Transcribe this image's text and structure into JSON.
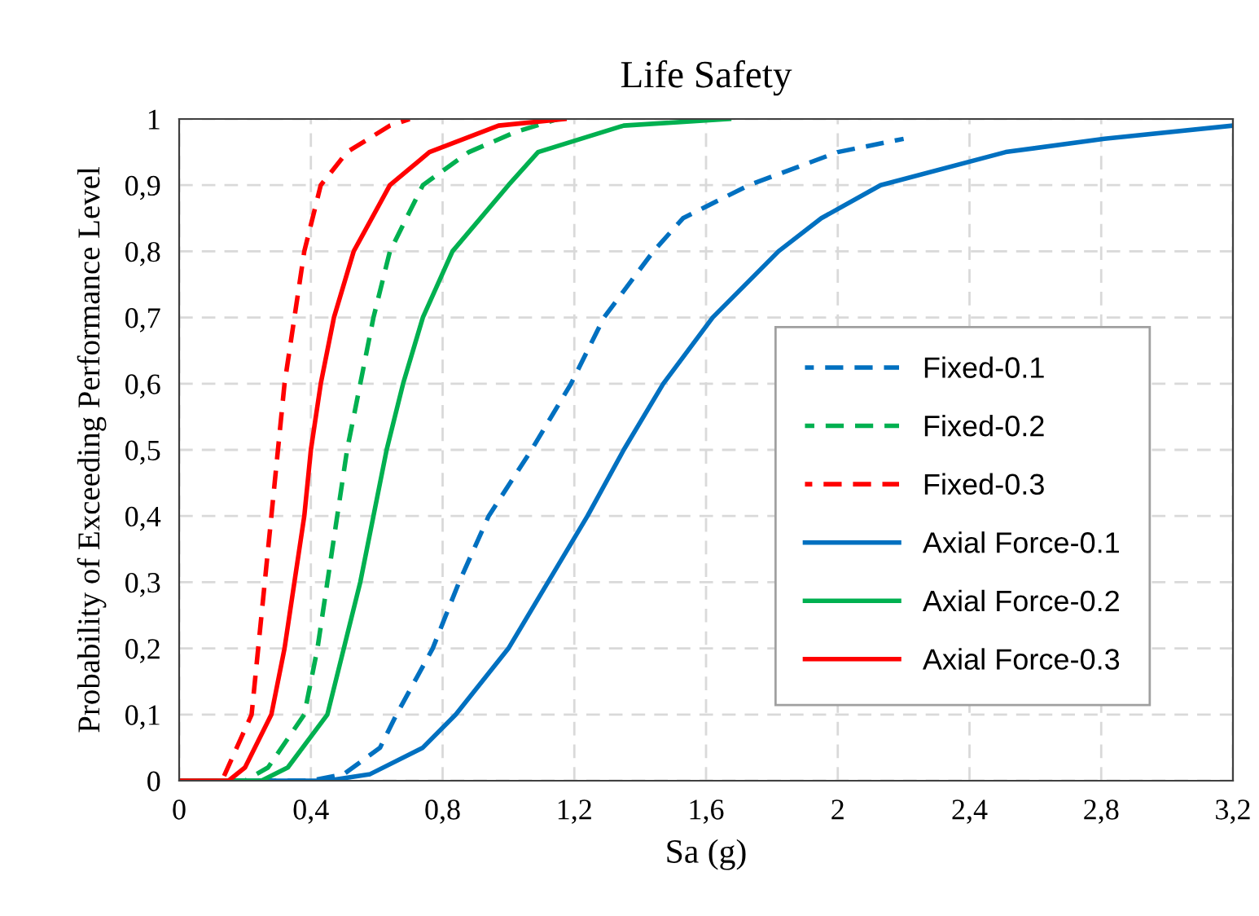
{
  "chart_data": {
    "type": "line",
    "title": "Life Safety",
    "xlabel": "Sa (g)",
    "ylabel": "Probability of Exceeding Performance Level",
    "xlim": [
      0,
      3.2
    ],
    "ylim": [
      0,
      1
    ],
    "xticks": [
      0,
      {
        "value": 0.4,
        "label": "0,4"
      },
      {
        "value": 0.8,
        "label": "0,8"
      },
      {
        "value": 1.2,
        "label": "1,2"
      },
      {
        "value": 1.6,
        "label": "1,6"
      },
      2,
      {
        "value": 2.4,
        "label": "2,4"
      },
      {
        "value": 2.8,
        "label": "2,8"
      },
      {
        "value": 3.2,
        "label": "3,2"
      }
    ],
    "yticks": [
      0,
      {
        "value": 0.1,
        "label": "0,1"
      },
      {
        "value": 0.2,
        "label": "0,2"
      },
      {
        "value": 0.3,
        "label": "0,3"
      },
      {
        "value": 0.4,
        "label": "0,4"
      },
      {
        "value": 0.5,
        "label": "0,5"
      },
      {
        "value": 0.6,
        "label": "0,6"
      },
      {
        "value": 0.7,
        "label": "0,7"
      },
      {
        "value": 0.8,
        "label": "0,8"
      },
      {
        "value": 0.9,
        "label": "0,9"
      },
      1
    ],
    "grid": true,
    "legend": "right",
    "marker": "none",
    "series": [
      {
        "name": "Fixed-0.1",
        "color": "#0070c0",
        "line_style": "dashed",
        "x": [
          0,
          0.4,
          0.5,
          0.61,
          0.66,
          0.77,
          0.85,
          0.94,
          1.07,
          1.19,
          1.29,
          1.44,
          1.53,
          1.73,
          2.0,
          2.2
        ],
        "values": [
          0,
          0,
          0.01,
          0.05,
          0.1,
          0.2,
          0.3,
          0.4,
          0.5,
          0.6,
          0.7,
          0.8,
          0.85,
          0.9,
          0.95,
          0.97
        ]
      },
      {
        "name": "Fixed-0.2",
        "color": "#00b050",
        "line_style": "dashed",
        "x": [
          0,
          0.2,
          0.27,
          0.38,
          0.42,
          0.45,
          0.48,
          0.51,
          0.55,
          0.59,
          0.64,
          0.74,
          0.88,
          1.02,
          1.15
        ],
        "values": [
          0,
          0,
          0.02,
          0.1,
          0.2,
          0.3,
          0.4,
          0.5,
          0.6,
          0.7,
          0.8,
          0.9,
          0.95,
          0.98,
          1
        ]
      },
      {
        "name": "Fixed-0.3",
        "color": "#ff0000",
        "line_style": "dashed",
        "x": [
          0,
          0.13,
          0.22,
          0.24,
          0.26,
          0.28,
          0.3,
          0.32,
          0.35,
          0.38,
          0.43,
          0.51,
          0.64,
          0.7
        ],
        "values": [
          0,
          0,
          0.1,
          0.2,
          0.3,
          0.4,
          0.5,
          0.6,
          0.7,
          0.8,
          0.9,
          0.95,
          0.99,
          1
        ]
      },
      {
        "name": "Axial Force-0.1",
        "color": "#0070c0",
        "line_style": "solid",
        "x": [
          0,
          0.45,
          0.58,
          0.74,
          0.84,
          1.0,
          1.12,
          1.24,
          1.35,
          1.47,
          1.62,
          1.82,
          1.95,
          2.13,
          2.51,
          2.81,
          3.2
        ],
        "values": [
          0,
          0,
          0.01,
          0.05,
          0.1,
          0.2,
          0.3,
          0.4,
          0.5,
          0.6,
          0.7,
          0.8,
          0.85,
          0.9,
          0.95,
          0.97,
          0.99
        ]
      },
      {
        "name": "Axial Force-0.2",
        "color": "#00b050",
        "line_style": "solid",
        "x": [
          0,
          0.25,
          0.33,
          0.45,
          0.5,
          0.55,
          0.59,
          0.63,
          0.68,
          0.74,
          0.83,
          1.0,
          1.09,
          1.35,
          1.67
        ],
        "values": [
          0,
          0,
          0.02,
          0.1,
          0.2,
          0.3,
          0.4,
          0.5,
          0.6,
          0.7,
          0.8,
          0.9,
          0.95,
          0.99,
          1
        ]
      },
      {
        "name": "Axial Force-0.3",
        "color": "#ff0000",
        "line_style": "solid",
        "x": [
          0,
          0.15,
          0.2,
          0.28,
          0.32,
          0.35,
          0.38,
          0.4,
          0.43,
          0.47,
          0.53,
          0.64,
          0.76,
          0.97,
          1.17
        ],
        "values": [
          0,
          0,
          0.02,
          0.1,
          0.2,
          0.3,
          0.4,
          0.5,
          0.6,
          0.7,
          0.8,
          0.9,
          0.95,
          0.99,
          1
        ]
      }
    ]
  }
}
